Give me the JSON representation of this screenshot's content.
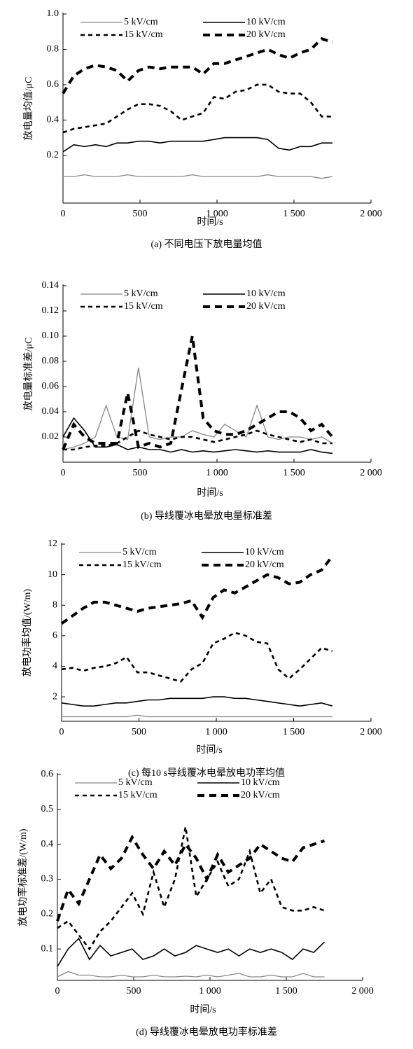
{
  "chart_data": [
    {
      "type": "line",
      "title": "(a) 不同电压下放电量均值",
      "xlabel": "时间/s",
      "ylabel": "放电量均值/μC",
      "xlim": [
        0,
        2000
      ],
      "xticks": [
        0,
        500,
        {
          "value": 1000,
          "label": "1 000"
        },
        {
          "value": 1500,
          "label": "1 500"
        },
        {
          "value": 2000,
          "label": "2 000"
        }
      ],
      "ylim": [
        -0.07,
        1.0
      ],
      "yticks": [
        0.2,
        0.4,
        0.6,
        0.8,
        {
          "value": 1,
          "label": "1.0"
        }
      ],
      "x": [
        0,
        70,
        140,
        210,
        280,
        350,
        420,
        490,
        560,
        630,
        700,
        770,
        840,
        910,
        980,
        1050,
        1120,
        1190,
        1260,
        1330,
        1400,
        1470,
        1540,
        1610,
        1680,
        1750
      ],
      "series": [
        {
          "name": "5 kV/cm",
          "color": "#888888",
          "values": [
            0.08,
            0.08,
            0.09,
            0.08,
            0.08,
            0.08,
            0.09,
            0.08,
            0.08,
            0.08,
            0.08,
            0.08,
            0.09,
            0.08,
            0.08,
            0.08,
            0.08,
            0.08,
            0.08,
            0.09,
            0.08,
            0.08,
            0.08,
            0.08,
            0.07,
            0.08
          ]
        },
        {
          "name": "10 kV/cm",
          "color": "#000000",
          "values": [
            0.22,
            0.26,
            0.25,
            0.26,
            0.25,
            0.27,
            0.27,
            0.28,
            0.28,
            0.27,
            0.28,
            0.28,
            0.28,
            0.28,
            0.29,
            0.3,
            0.3,
            0.3,
            0.3,
            0.29,
            0.24,
            0.23,
            0.25,
            0.25,
            0.27,
            0.27
          ]
        },
        {
          "name": "15 kV/cm",
          "color": "#000000",
          "values": [
            0.33,
            0.35,
            0.36,
            0.37,
            0.38,
            0.42,
            0.46,
            0.49,
            0.49,
            0.48,
            0.45,
            0.4,
            0.42,
            0.44,
            0.53,
            0.52,
            0.56,
            0.57,
            0.6,
            0.6,
            0.56,
            0.55,
            0.55,
            0.5,
            0.42,
            0.42
          ]
        },
        {
          "name": "20 kV/cm",
          "color": "#000000",
          "values": [
            0.55,
            0.65,
            0.69,
            0.71,
            0.7,
            0.68,
            0.62,
            0.68,
            0.7,
            0.69,
            0.7,
            0.7,
            0.7,
            0.66,
            0.72,
            0.72,
            0.74,
            0.76,
            0.78,
            0.8,
            0.77,
            0.75,
            0.78,
            0.8,
            0.86,
            0.84
          ]
        }
      ]
    },
    {
      "type": "line",
      "title": "(b) 导线覆冰电晕放电量标准差",
      "xlabel": "时间/s",
      "ylabel": "放电量标准差/μC",
      "xlim": [
        0,
        2000
      ],
      "xticks": [
        0,
        500,
        {
          "value": 1000,
          "label": "1 000"
        },
        {
          "value": 1500,
          "label": "1 500"
        },
        {
          "value": 2000,
          "label": "2 000"
        }
      ],
      "ylim": [
        0,
        0.14
      ],
      "yticks": [
        0.02,
        0.04,
        0.06,
        0.08,
        {
          "value": 0.1,
          "label": "0.10"
        },
        0.12,
        0.14
      ],
      "x": [
        0,
        70,
        140,
        210,
        280,
        350,
        420,
        490,
        560,
        630,
        700,
        770,
        840,
        910,
        980,
        1050,
        1120,
        1190,
        1260,
        1330,
        1400,
        1470,
        1540,
        1610,
        1680,
        1750
      ],
      "series": [
        {
          "name": "5 kV/cm",
          "color": "#888888",
          "values": [
            0.01,
            0.012,
            0.015,
            0.02,
            0.045,
            0.02,
            0.018,
            0.075,
            0.02,
            0.018,
            0.02,
            0.02,
            0.025,
            0.022,
            0.02,
            0.03,
            0.025,
            0.02,
            0.045,
            0.02,
            0.018,
            0.02,
            0.02,
            0.018,
            0.02,
            0.015
          ]
        },
        {
          "name": "10 kV/cm",
          "color": "#000000",
          "values": [
            0.02,
            0.035,
            0.025,
            0.012,
            0.012,
            0.014,
            0.01,
            0.012,
            0.01,
            0.01,
            0.008,
            0.01,
            0.008,
            0.009,
            0.008,
            0.009,
            0.01,
            0.009,
            0.008,
            0.009,
            0.008,
            0.008,
            0.008,
            0.01,
            0.008,
            0.007
          ]
        },
        {
          "name": "15 kV/cm",
          "color": "#000000",
          "values": [
            0.01,
            0.01,
            0.012,
            0.013,
            0.013,
            0.015,
            0.02,
            0.025,
            0.022,
            0.02,
            0.018,
            0.02,
            0.02,
            0.018,
            0.016,
            0.018,
            0.02,
            0.022,
            0.025,
            0.022,
            0.02,
            0.018,
            0.016,
            0.018,
            0.015,
            0.015
          ]
        },
        {
          "name": "20 kV/cm",
          "color": "#000000",
          "values": [
            0.01,
            0.03,
            0.02,
            0.015,
            0.015,
            0.015,
            0.055,
            0.012,
            0.015,
            0.012,
            0.015,
            0.058,
            0.1,
            0.035,
            0.025,
            0.022,
            0.022,
            0.025,
            0.03,
            0.035,
            0.04,
            0.04,
            0.035,
            0.025,
            0.03,
            0.02
          ]
        }
      ]
    },
    {
      "type": "line",
      "title": "(c) 每10 s导线覆冰电晕放电功率均值",
      "xlabel": "时间/s",
      "ylabel": "放电功率均值/(W/m)",
      "xlim": [
        0,
        2000
      ],
      "xticks": [
        0,
        500,
        {
          "value": 1000,
          "label": "1 000"
        },
        {
          "value": 1500,
          "label": "1 500"
        },
        {
          "value": 2000,
          "label": "2 000"
        }
      ],
      "ylim": [
        0.4,
        12
      ],
      "yticks": [
        2,
        4,
        6,
        8,
        10,
        12
      ],
      "x": [
        0,
        70,
        140,
        210,
        280,
        350,
        420,
        490,
        560,
        630,
        700,
        770,
        840,
        910,
        980,
        1050,
        1120,
        1190,
        1260,
        1330,
        1400,
        1470,
        1540,
        1610,
        1680,
        1750
      ],
      "series": [
        {
          "name": "5 kV/cm",
          "color": "#888888",
          "values": [
            0.7,
            0.7,
            0.7,
            0.7,
            0.7,
            0.7,
            0.7,
            0.8,
            0.7,
            0.7,
            0.7,
            0.7,
            0.7,
            0.7,
            0.7,
            0.7,
            0.7,
            0.7,
            0.7,
            0.7,
            0.7,
            0.7,
            0.7,
            0.7,
            0.7,
            0.7
          ]
        },
        {
          "name": "10 kV/cm",
          "color": "#000000",
          "values": [
            1.6,
            1.5,
            1.4,
            1.4,
            1.5,
            1.6,
            1.6,
            1.7,
            1.8,
            1.8,
            1.9,
            1.9,
            1.9,
            1.9,
            2.0,
            2.0,
            1.9,
            1.9,
            1.8,
            1.7,
            1.6,
            1.5,
            1.4,
            1.5,
            1.6,
            1.4
          ]
        },
        {
          "name": "15 kV/cm",
          "color": "#000000",
          "values": [
            3.8,
            3.9,
            3.7,
            3.9,
            4.0,
            4.2,
            4.6,
            3.6,
            3.6,
            3.4,
            3.2,
            3.0,
            3.8,
            4.2,
            5.5,
            5.8,
            6.2,
            6.0,
            5.6,
            5.5,
            3.8,
            3.2,
            3.8,
            4.5,
            5.2,
            5.0
          ]
        },
        {
          "name": "20 kV/cm",
          "color": "#000000",
          "values": [
            6.8,
            7.3,
            7.8,
            8.2,
            8.2,
            8.0,
            7.8,
            7.6,
            7.8,
            7.9,
            8.0,
            8.1,
            8.3,
            7.2,
            8.5,
            9.0,
            8.8,
            9.2,
            9.6,
            10.0,
            9.8,
            9.4,
            9.5,
            10.0,
            10.3,
            11.2
          ]
        }
      ]
    },
    {
      "type": "line",
      "title": "(d) 导线覆冰电晕放电功率标准差",
      "xlabel": "时间/s",
      "ylabel": "放电功率标准差/(W/m)",
      "xlim": [
        0,
        2000
      ],
      "xticks": [
        0,
        500,
        {
          "value": 1000,
          "label": "1 000"
        },
        {
          "value": 1500,
          "label": "1 500"
        },
        {
          "value": 2000,
          "label": "2 000"
        }
      ],
      "ylim": [
        0.01,
        0.6
      ],
      "yticks": [
        0.1,
        0.2,
        0.3,
        0.4,
        0.5,
        0.6
      ],
      "x": [
        0,
        70,
        140,
        210,
        280,
        350,
        420,
        490,
        560,
        630,
        700,
        770,
        840,
        910,
        980,
        1050,
        1120,
        1190,
        1260,
        1330,
        1400,
        1470,
        1540,
        1610,
        1680,
        1750
      ],
      "series": [
        {
          "name": "5 kV/cm",
          "color": "#888888",
          "values": [
            0.02,
            0.035,
            0.025,
            0.025,
            0.02,
            0.02,
            0.025,
            0.02,
            0.02,
            0.025,
            0.02,
            0.02,
            0.022,
            0.02,
            0.025,
            0.02,
            0.025,
            0.03,
            0.02,
            0.02,
            0.025,
            0.02,
            0.02,
            0.03,
            0.02,
            0.02
          ]
        },
        {
          "name": "10 kV/cm",
          "color": "#000000",
          "values": [
            0.05,
            0.1,
            0.13,
            0.07,
            0.11,
            0.08,
            0.09,
            0.1,
            0.07,
            0.08,
            0.1,
            0.08,
            0.09,
            0.11,
            0.1,
            0.09,
            0.1,
            0.08,
            0.1,
            0.09,
            0.1,
            0.09,
            0.07,
            0.1,
            0.09,
            0.12
          ]
        },
        {
          "name": "15 kV/cm",
          "color": "#000000",
          "values": [
            0.16,
            0.18,
            0.14,
            0.1,
            0.15,
            0.18,
            0.22,
            0.26,
            0.2,
            0.32,
            0.22,
            0.3,
            0.45,
            0.25,
            0.3,
            0.35,
            0.28,
            0.3,
            0.38,
            0.26,
            0.3,
            0.22,
            0.21,
            0.21,
            0.22,
            0.21
          ]
        },
        {
          "name": "20 kV/cm",
          "color": "#000000",
          "values": [
            0.18,
            0.27,
            0.23,
            0.3,
            0.37,
            0.33,
            0.36,
            0.42,
            0.37,
            0.33,
            0.38,
            0.34,
            0.4,
            0.36,
            0.3,
            0.37,
            0.32,
            0.34,
            0.36,
            0.4,
            0.38,
            0.36,
            0.35,
            0.39,
            0.4,
            0.41
          ]
        }
      ]
    }
  ]
}
